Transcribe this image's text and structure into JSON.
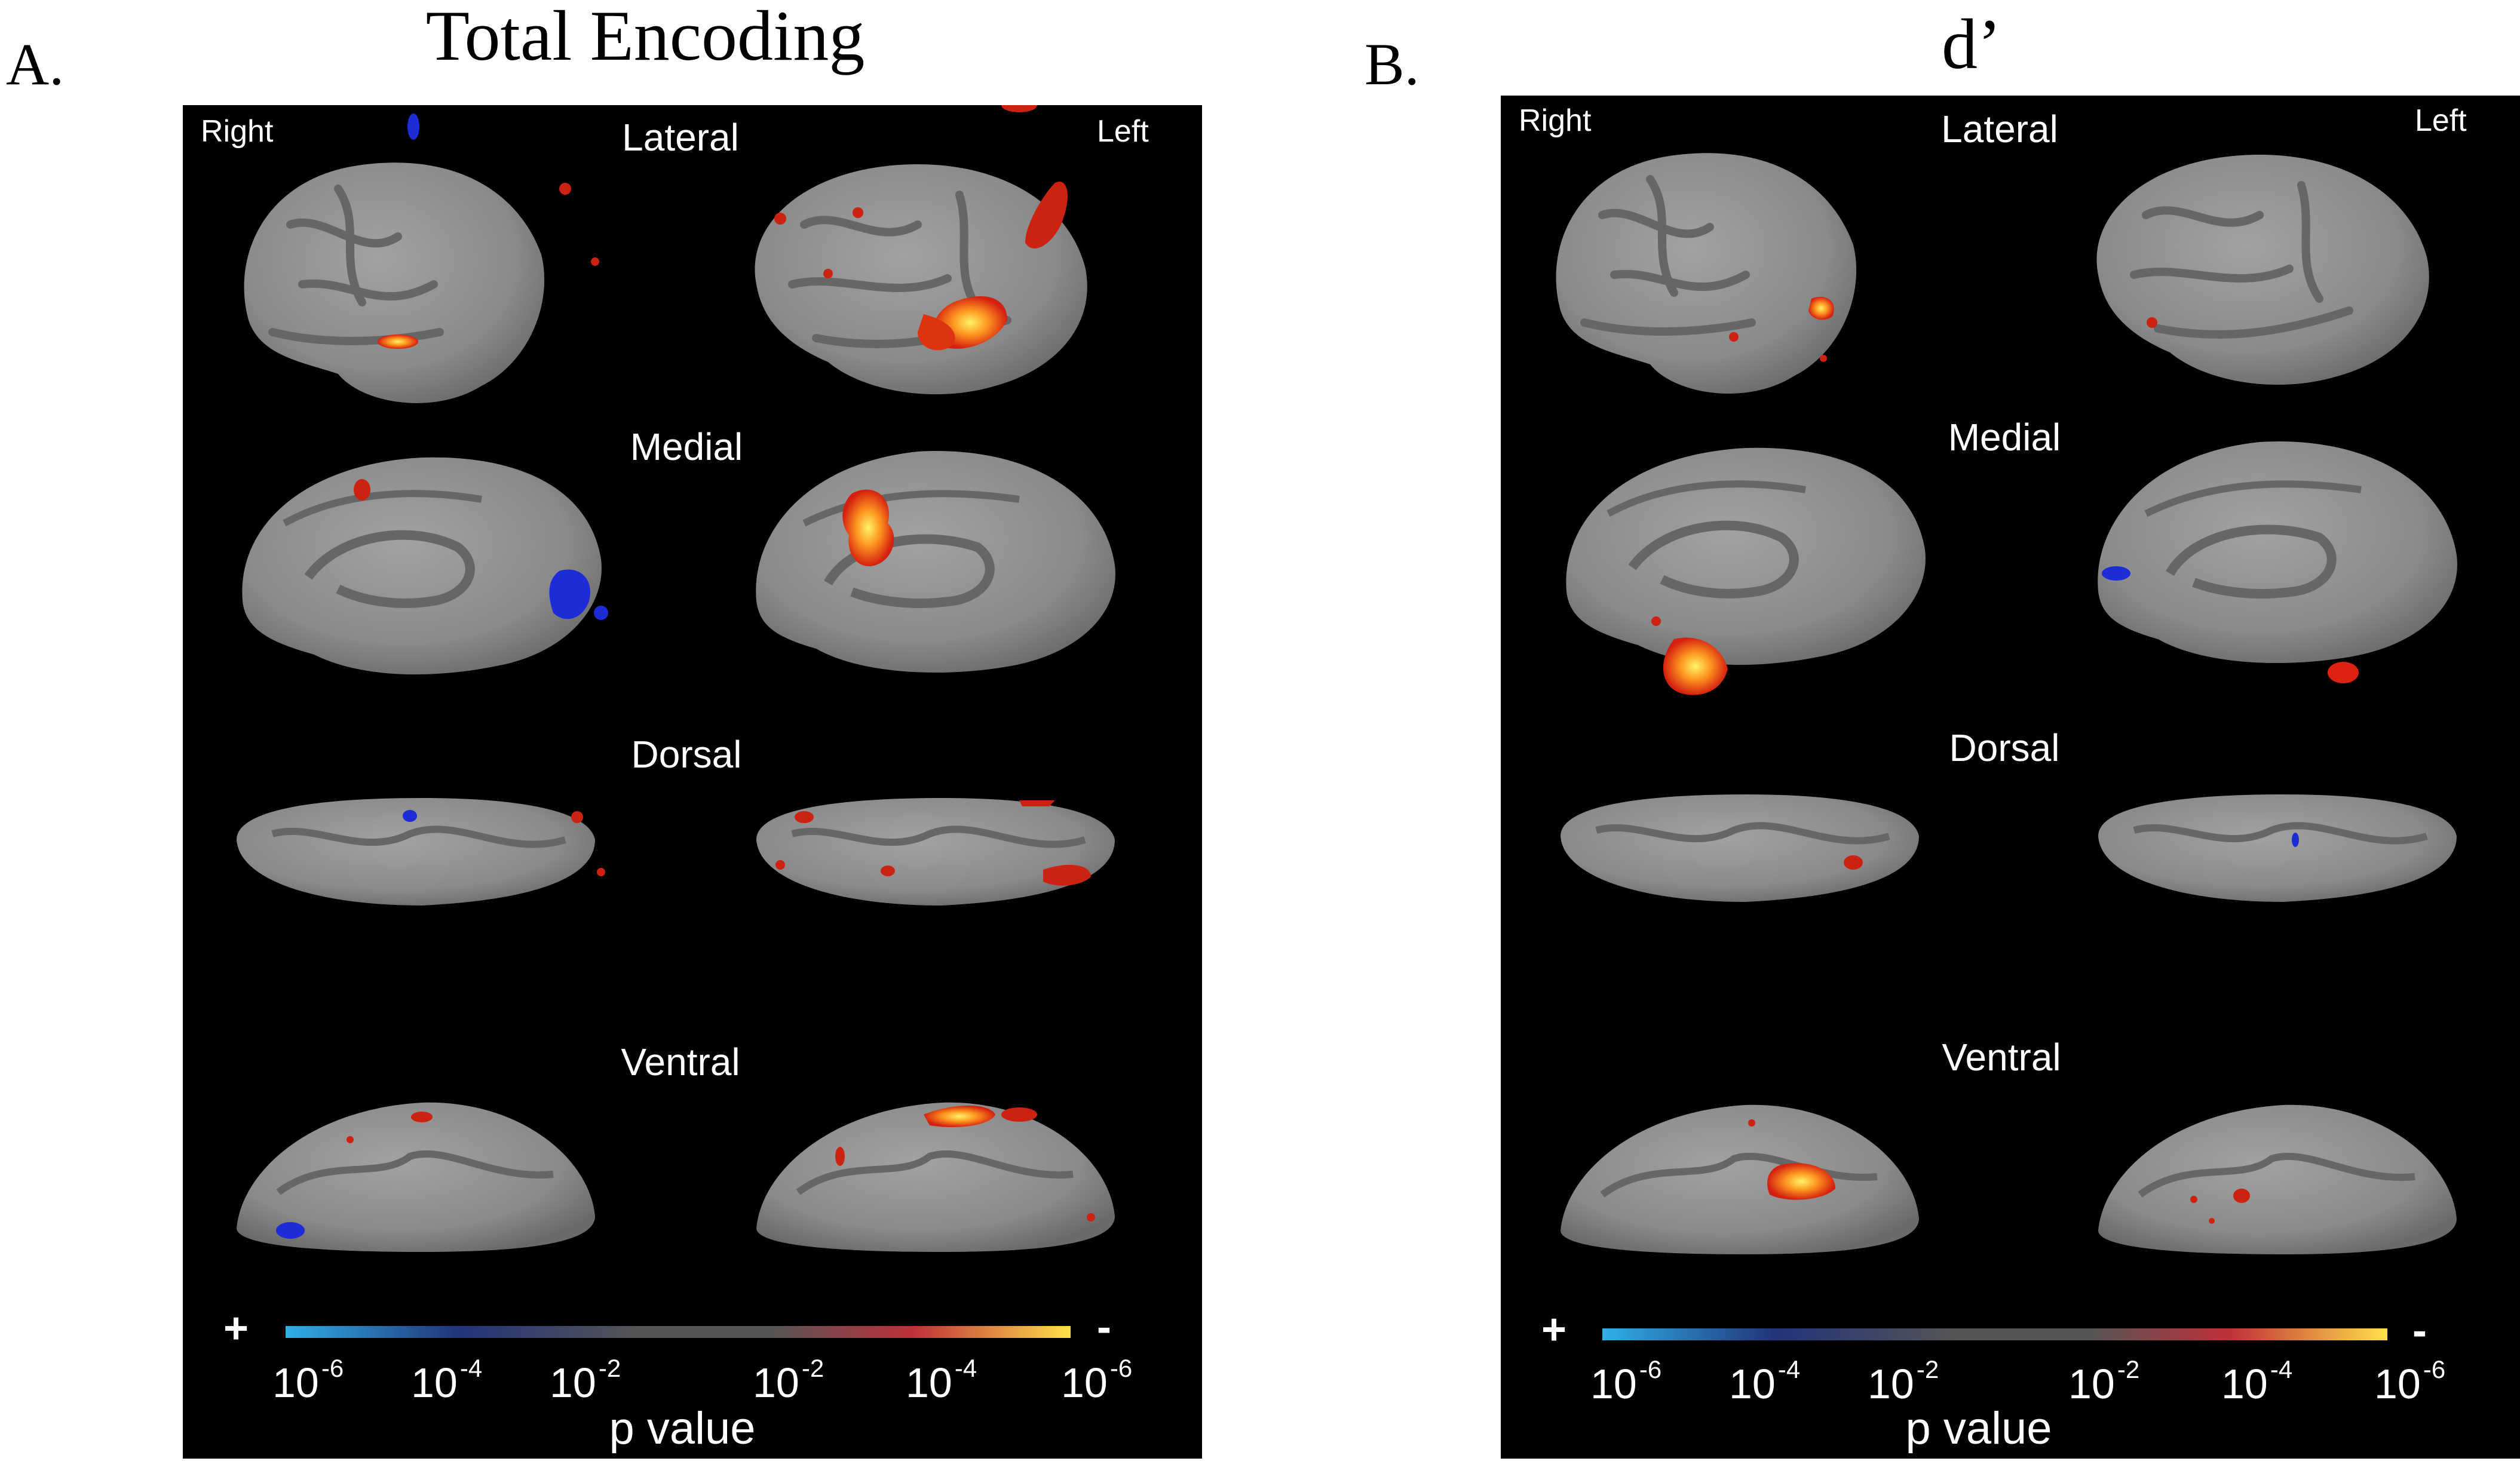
{
  "panels": [
    {
      "letter": "A.",
      "title": "Total Encoding",
      "hemisphere_labels": {
        "right": "Right",
        "left": "Left"
      },
      "views": [
        "Lateral",
        "Medial",
        "Dorsal",
        "Ventral"
      ],
      "colorbar": {
        "plus": "+",
        "minus": "-",
        "ticks": [
          {
            "base": "10",
            "exp": "-6"
          },
          {
            "base": "10",
            "exp": "-4"
          },
          {
            "base": "10",
            "exp": "-2"
          },
          {
            "base": "10",
            "exp": "-2"
          },
          {
            "base": "10",
            "exp": "-4"
          },
          {
            "base": "10",
            "exp": "-6"
          }
        ],
        "label": "p value",
        "colors": [
          "#2fb0e6",
          "#22337a",
          "#555555",
          "#c0303a",
          "#ffe14a"
        ]
      }
    },
    {
      "letter": "B.",
      "title": "d’",
      "hemisphere_labels": {
        "right": "Right",
        "left": "Left"
      },
      "views": [
        "Lateral",
        "Medial",
        "Dorsal",
        "Ventral"
      ],
      "colorbar": {
        "plus": "+",
        "minus": "-",
        "ticks": [
          {
            "base": "10",
            "exp": "-6"
          },
          {
            "base": "10",
            "exp": "-4"
          },
          {
            "base": "10",
            "exp": "-2"
          },
          {
            "base": "10",
            "exp": "-2"
          },
          {
            "base": "10",
            "exp": "-4"
          },
          {
            "base": "10",
            "exp": "-6"
          }
        ],
        "label": "p value",
        "colors": [
          "#2fb0e6",
          "#22337a",
          "#555555",
          "#c0303a",
          "#ffe14a"
        ]
      }
    }
  ],
  "colors": {
    "background": "#000000",
    "cortex": "#8a8a8a",
    "sulcus": "#666666",
    "activation_high": "#ffdd33",
    "activation_low": "#cc2211",
    "deactivation": "#1c2cd6"
  }
}
